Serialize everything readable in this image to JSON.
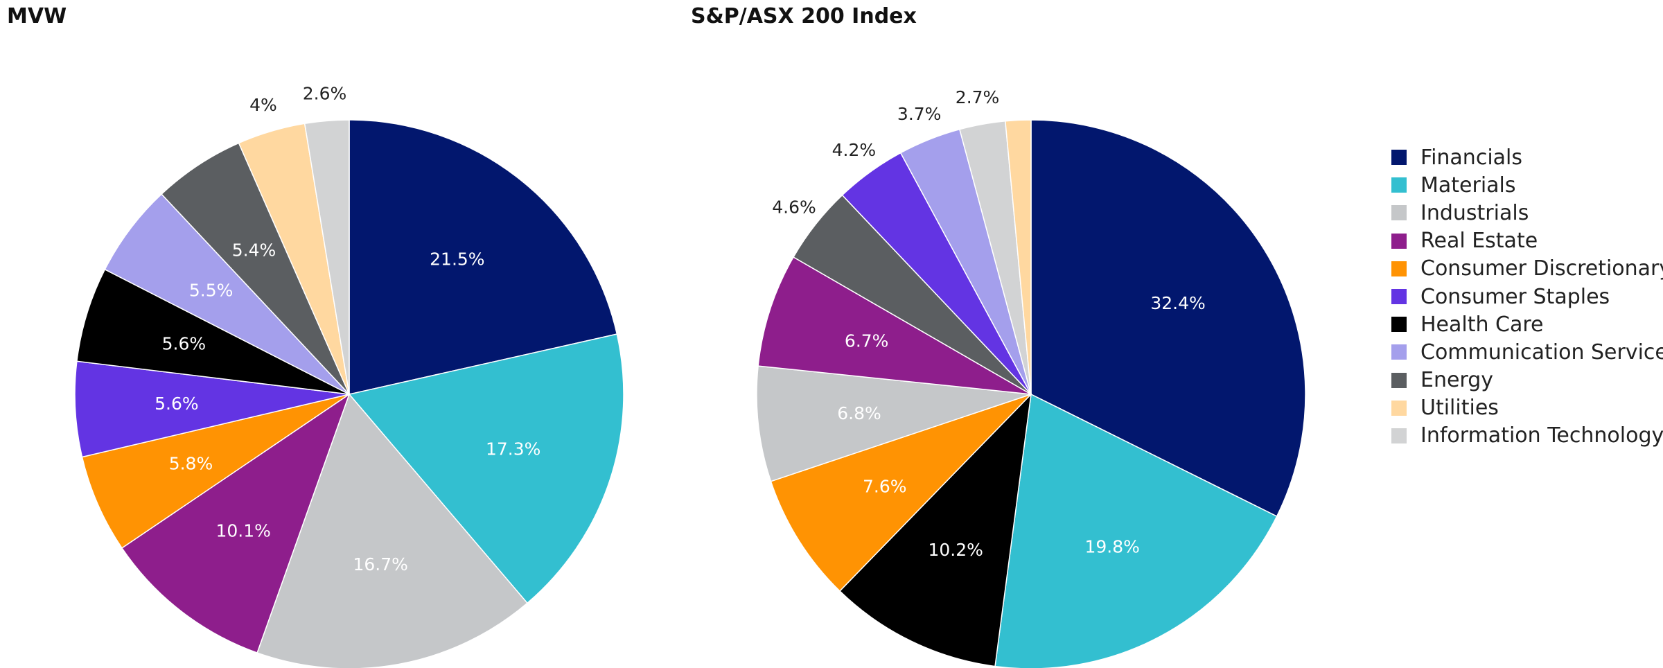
{
  "categories": [
    "Financials",
    "Materials",
    "Industrials",
    "Real Estate",
    "Consumer Discretionary",
    "Consumer Staples",
    "Health Care",
    "Communication Services",
    "Energy",
    "Utilities",
    "Information Technology"
  ],
  "colors": {
    "Financials": "#02176E",
    "Materials": "#33BFD0",
    "Industrials": "#C5C7C9",
    "Real Estate": "#8E1E8C",
    "Consumer Discretionary": "#FF9303",
    "Consumer Staples": "#6334E3",
    "Health Care": "#000000",
    "Communication Services": "#A49FEC",
    "Energy": "#5B5E61",
    "Utilities": "#FFD8A0",
    "Information Technology": "#D2D3D4"
  },
  "label_colors": {
    "inside": "#FFFFFF",
    "outside": "#222222"
  },
  "chart_data": [
    {
      "type": "pie",
      "title": "MVW",
      "start_angle_deg": 0,
      "direction": "clockwise",
      "slices": [
        {
          "category": "Financials",
          "value": 21.5,
          "label": "21.5%",
          "label_position": "inside"
        },
        {
          "category": "Materials",
          "value": 17.3,
          "label": "17.3%",
          "label_position": "inside"
        },
        {
          "category": "Industrials",
          "value": 16.7,
          "label": "16.7%",
          "label_position": "inside"
        },
        {
          "category": "Real Estate",
          "value": 10.1,
          "label": "10.1%",
          "label_position": "inside"
        },
        {
          "category": "Consumer Discretionary",
          "value": 5.8,
          "label": "5.8%",
          "label_position": "inside"
        },
        {
          "category": "Consumer Staples",
          "value": 5.6,
          "label": "5.6%",
          "label_position": "inside"
        },
        {
          "category": "Health Care",
          "value": 5.6,
          "label": "5.6%",
          "label_position": "inside"
        },
        {
          "category": "Communication Services",
          "value": 5.5,
          "label": "5.5%",
          "label_position": "inside"
        },
        {
          "category": "Energy",
          "value": 5.4,
          "label": "5.4%",
          "label_position": "inside"
        },
        {
          "category": "Utilities",
          "value": 4.0,
          "label": "4%",
          "label_position": "outside"
        },
        {
          "category": "Information Technology",
          "value": 2.6,
          "label": "2.6%",
          "label_position": "outside"
        }
      ]
    },
    {
      "type": "pie",
      "title": "S&P/ASX 200 Index",
      "start_angle_deg": 0,
      "direction": "clockwise",
      "slices": [
        {
          "category": "Financials",
          "value": 32.4,
          "label": "32.4%",
          "label_position": "inside"
        },
        {
          "category": "Materials",
          "value": 19.8,
          "label": "19.8%",
          "label_position": "inside"
        },
        {
          "category": "Health Care",
          "value": 10.2,
          "label": "10.2%",
          "label_position": "inside"
        },
        {
          "category": "Consumer Discretionary",
          "value": 7.6,
          "label": "7.6%",
          "label_position": "inside"
        },
        {
          "category": "Industrials",
          "value": 6.8,
          "label": "6.8%",
          "label_position": "inside"
        },
        {
          "category": "Real Estate",
          "value": 6.7,
          "label": "6.7%",
          "label_position": "inside"
        },
        {
          "category": "Energy",
          "value": 4.6,
          "label": "4.6%",
          "label_position": "outside"
        },
        {
          "category": "Consumer Staples",
          "value": 4.2,
          "label": "4.2%",
          "label_position": "outside"
        },
        {
          "category": "Communication Services",
          "value": 3.7,
          "label": "3.7%",
          "label_position": "outside"
        },
        {
          "category": "Information Technology",
          "value": 2.7,
          "label": "2.7%",
          "label_position": "outside"
        },
        {
          "category": "Utilities",
          "value": 1.5,
          "label": "",
          "label_position": "none"
        }
      ]
    }
  ],
  "legend": {
    "position": "right",
    "items": [
      "Financials",
      "Materials",
      "Industrials",
      "Real Estate",
      "Consumer Discretionary",
      "Consumer Staples",
      "Health Care",
      "Communication Services",
      "Energy",
      "Utilities",
      "Information Technology"
    ]
  }
}
